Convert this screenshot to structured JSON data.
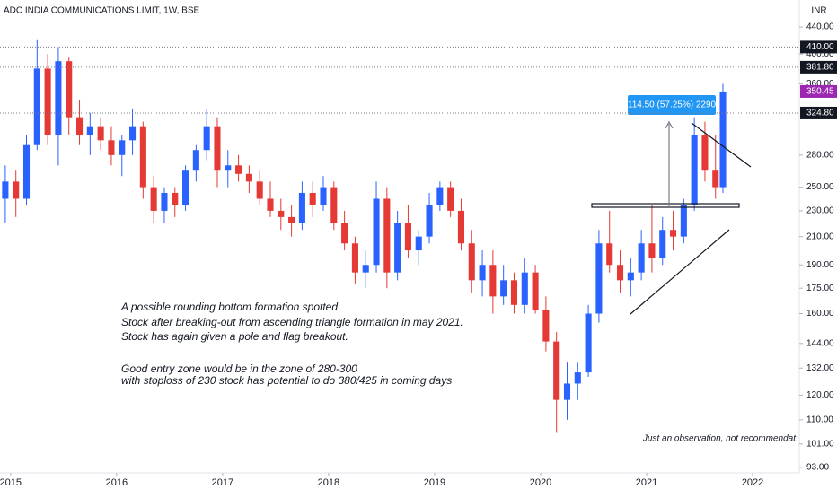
{
  "chart_data": {
    "type": "candlestick",
    "title": "ADC INDIA COMMUNICATIONS LIMIT, 1W, BSE",
    "currency": "INR",
    "log_scale": true,
    "up_color": "#2962ff",
    "down_color": "#e53935",
    "x": [
      2014.95,
      2015.05,
      2015.15,
      2015.25,
      2015.35,
      2015.45,
      2015.55,
      2015.65,
      2015.75,
      2015.85,
      2015.95,
      2016.05,
      2016.15,
      2016.25,
      2016.35,
      2016.45,
      2016.55,
      2016.65,
      2016.75,
      2016.85,
      2016.95,
      2017.05,
      2017.15,
      2017.25,
      2017.35,
      2017.45,
      2017.55,
      2017.65,
      2017.75,
      2017.85,
      2017.95,
      2018.05,
      2018.15,
      2018.25,
      2018.35,
      2018.45,
      2018.55,
      2018.65,
      2018.75,
      2018.85,
      2018.95,
      2019.05,
      2019.15,
      2019.25,
      2019.35,
      2019.45,
      2019.55,
      2019.65,
      2019.75,
      2019.85,
      2019.95,
      2020.05,
      2020.15,
      2020.25,
      2020.35,
      2020.45,
      2020.55,
      2020.65,
      2020.75,
      2020.85,
      2020.95,
      2021.05,
      2021.15,
      2021.25,
      2021.35,
      2021.45,
      2021.55,
      2021.65,
      2021.72
    ],
    "open": [
      240,
      255,
      240,
      290,
      380,
      300,
      390,
      320,
      300,
      310,
      295,
      280,
      295,
      310,
      250,
      230,
      245,
      235,
      265,
      285,
      310,
      265,
      270,
      262,
      255,
      240,
      230,
      225,
      220,
      245,
      235,
      250,
      220,
      205,
      185,
      190,
      240,
      185,
      220,
      200,
      210,
      235,
      250,
      230,
      205,
      180,
      190,
      170,
      180,
      165,
      185,
      162,
      145,
      118,
      125,
      130,
      160,
      205,
      190,
      180,
      185,
      205,
      195,
      215,
      210,
      235,
      300,
      265,
      250
    ],
    "high": [
      270,
      265,
      300,
      420,
      400,
      410,
      395,
      340,
      325,
      320,
      310,
      300,
      330,
      315,
      260,
      250,
      250,
      270,
      290,
      330,
      320,
      285,
      280,
      270,
      265,
      255,
      240,
      235,
      255,
      255,
      260,
      255,
      230,
      210,
      200,
      255,
      250,
      230,
      235,
      215,
      245,
      255,
      255,
      240,
      215,
      200,
      200,
      190,
      185,
      195,
      190,
      170,
      150,
      135,
      135,
      165,
      215,
      230,
      200,
      195,
      215,
      235,
      225,
      230,
      240,
      320,
      315,
      300,
      360
    ],
    "low": [
      220,
      225,
      235,
      285,
      290,
      270,
      300,
      290,
      280,
      285,
      270,
      260,
      280,
      240,
      220,
      220,
      225,
      230,
      255,
      275,
      250,
      250,
      255,
      245,
      235,
      225,
      215,
      210,
      215,
      225,
      230,
      215,
      200,
      178,
      175,
      185,
      175,
      180,
      195,
      190,
      205,
      230,
      225,
      200,
      172,
      170,
      160,
      165,
      160,
      160,
      160,
      140,
      105,
      110,
      118,
      128,
      155,
      185,
      172,
      170,
      180,
      185,
      190,
      200,
      205,
      230,
      255,
      240,
      245
    ],
    "close": [
      255,
      240,
      290,
      380,
      300,
      390,
      320,
      300,
      310,
      295,
      280,
      295,
      310,
      250,
      230,
      245,
      235,
      265,
      285,
      310,
      265,
      270,
      262,
      255,
      240,
      230,
      225,
      220,
      245,
      235,
      250,
      220,
      205,
      185,
      190,
      240,
      185,
      220,
      200,
      210,
      235,
      250,
      230,
      205,
      180,
      190,
      170,
      180,
      165,
      185,
      162,
      145,
      118,
      125,
      130,
      160,
      205,
      190,
      180,
      185,
      205,
      195,
      215,
      210,
      235,
      300,
      265,
      250,
      350.45
    ],
    "xlim": [
      2014.9,
      2022.44
    ],
    "ylim": [
      91.2,
      484
    ],
    "xticks": [
      2015,
      2016,
      2017,
      2018,
      2019,
      2020,
      2021,
      2022
    ],
    "yticks": [
      {
        "value": 93,
        "label": "93.00"
      },
      {
        "value": 101,
        "label": "101.00"
      },
      {
        "value": 110,
        "label": "110.00"
      },
      {
        "value": 120,
        "label": "120.00"
      },
      {
        "value": 132,
        "label": "132.00"
      },
      {
        "value": 144,
        "label": "144.00"
      },
      {
        "value": 160,
        "label": "160.00"
      },
      {
        "value": 175,
        "label": "175.00"
      },
      {
        "value": 190,
        "label": "190.00"
      },
      {
        "value": 210,
        "label": "210.00"
      },
      {
        "value": 230,
        "label": "230.00"
      },
      {
        "value": 250,
        "label": "250.00"
      },
      {
        "value": 280,
        "label": "280.00"
      },
      {
        "value": 360,
        "label": "360.00"
      },
      {
        "value": 400,
        "label": "400.00"
      },
      {
        "value": 440,
        "label": "440.00"
      }
    ],
    "price_lines": [
      {
        "value": 410,
        "label": "410.00",
        "color": "#131722"
      },
      {
        "value": 381.8,
        "label": "381.80",
        "color": "#131722"
      },
      {
        "value": 350.45,
        "label": "350.45",
        "color": "#9c27b0"
      },
      {
        "value": 324.8,
        "label": "324.80",
        "color": "#131722"
      }
    ],
    "measure_label": "114.50 (57.25%) 2290",
    "annotations": [
      "A possible rounding bottom formation spotted.",
      "Stock after breaking-out from ascending triangle formation in may 2021.",
      "Stock has again given a pole and flag breakout.",
      "Good entry zone would be in the zone of 280-300",
      "with stoploss of 230 stock has potential to do 380/425 in coming days"
    ],
    "footnote": "Just an observation, not recommendat"
  }
}
